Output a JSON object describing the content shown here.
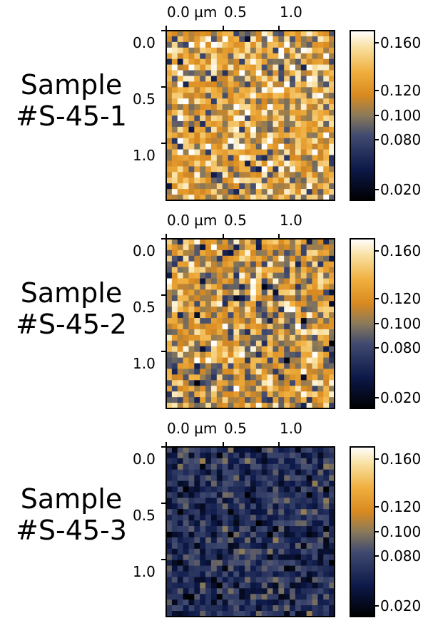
{
  "chart_data": [
    {
      "type": "heatmap",
      "label_lines": [
        "Sample",
        "#S-45-1"
      ],
      "x_ticks": [
        "0.0 µm",
        "0.5",
        "1.0"
      ],
      "y_ticks": [
        "0.0",
        "0.5",
        "1.0"
      ],
      "colorbar_ticks": [
        "0.160",
        "0.120",
        "0.100",
        "0.080",
        "0.020"
      ],
      "value_range": [
        0.02,
        0.17
      ],
      "grid": {
        "rows": 30,
        "cols": 30,
        "center": 0.115,
        "spread": 0.03,
        "seed": 17
      }
    },
    {
      "type": "heatmap",
      "label_lines": [
        "Sample",
        "#S-45-2"
      ],
      "x_ticks": [
        "0.0 µm",
        "0.5",
        "1.0"
      ],
      "y_ticks": [
        "0.0",
        "0.5",
        "1.0"
      ],
      "colorbar_ticks": [
        "0.160",
        "0.120",
        "0.100",
        "0.080",
        "0.020"
      ],
      "value_range": [
        0.02,
        0.17
      ],
      "grid": {
        "rows": 30,
        "cols": 30,
        "center": 0.103,
        "spread": 0.03,
        "seed": 41
      }
    },
    {
      "type": "heatmap",
      "label_lines": [
        "Sample",
        "#S-45-3"
      ],
      "x_ticks": [
        "0.0 µm",
        "0.5",
        "1.0"
      ],
      "y_ticks": [
        "0.0",
        "0.5",
        "1.0"
      ],
      "colorbar_ticks": [
        "0.160",
        "0.120",
        "0.100",
        "0.080",
        "0.020"
      ],
      "value_range": [
        0.02,
        0.17
      ],
      "grid": {
        "rows": 30,
        "cols": 30,
        "center": 0.052,
        "spread": 0.014,
        "seed": 73
      }
    }
  ],
  "colors": {
    "colormap": [
      "#000000",
      "#0c1848",
      "#404a70",
      "#8a7a5a",
      "#d98a20",
      "#f0b040",
      "#f8e0a0",
      "#ffffff"
    ],
    "axis": "#000000"
  }
}
